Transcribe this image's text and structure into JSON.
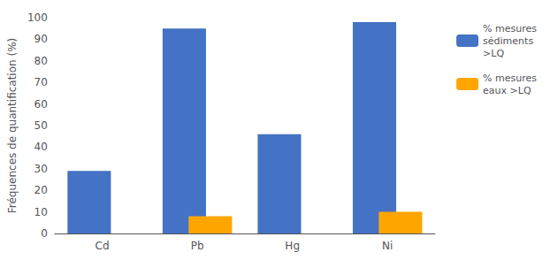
{
  "chart_data": {
    "type": "bar",
    "categories": [
      "Cd",
      "Pb",
      "Hg",
      "Ni"
    ],
    "series": [
      {
        "name": "% mesures\nsédiments\n>LQ",
        "color": "#4472C4",
        "values": [
          29,
          95,
          46,
          98
        ]
      },
      {
        "name": "% mesures\neaux >LQ",
        "color": "#FFA500",
        "values": [
          0,
          8,
          0,
          10
        ]
      }
    ],
    "ylabel": "Fréquences de quantification (%)",
    "ylim": [
      0,
      100
    ],
    "yticks": [
      0,
      10,
      20,
      30,
      40,
      50,
      60,
      70,
      80,
      90,
      100
    ],
    "grid": false,
    "legend": "right"
  }
}
